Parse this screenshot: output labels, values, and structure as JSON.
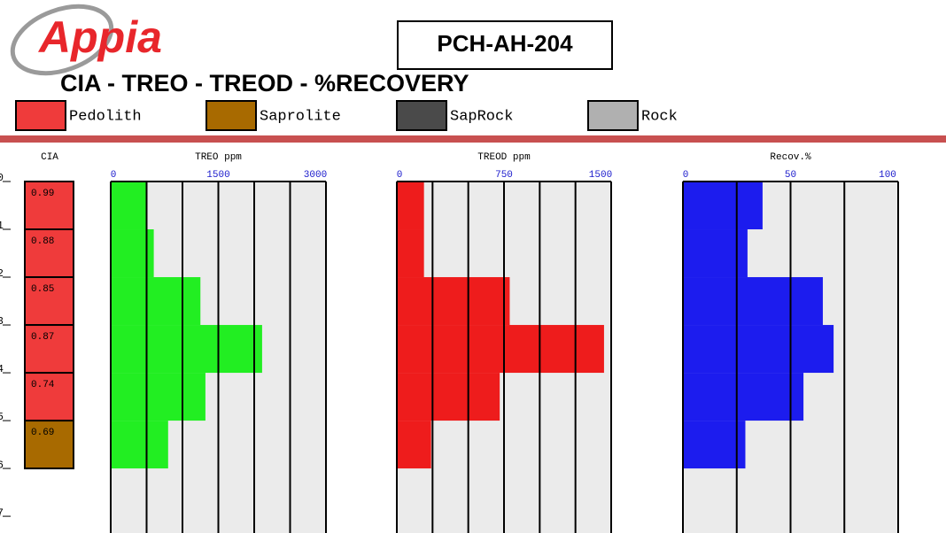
{
  "header": {
    "logo": "Appia",
    "hole_id": "PCH-AH-204",
    "title": "CIA - TREO - TREOD - %RECOVERY"
  },
  "legend": {
    "items": [
      {
        "name": "Pedolith",
        "color": "#ef3b3b"
      },
      {
        "name": "Saprolite",
        "color": "#a86a00"
      },
      {
        "name": "SapRock",
        "color": "#4a4a4a"
      },
      {
        "name": "Rock",
        "color": "#b0b0b0"
      }
    ]
  },
  "depth_axis": {
    "ylim": [
      0,
      7.35
    ],
    "yticks": [
      0,
      1,
      2,
      3,
      4,
      5,
      6,
      7
    ]
  },
  "intervals": {
    "depth_from": [
      0,
      1,
      2,
      3,
      4,
      5
    ],
    "depth_to": [
      1,
      2,
      3,
      4,
      5,
      6
    ]
  },
  "cia": {
    "title": "CIA",
    "values": [
      0.99,
      0.88,
      0.85,
      0.87,
      0.74,
      0.69
    ],
    "lithology": [
      "Pedolith",
      "Pedolith",
      "Pedolith",
      "Pedolith",
      "Pedolith",
      "Saprolite"
    ]
  },
  "chart_data": [
    {
      "type": "bar",
      "orientation": "horizontal",
      "title": "TREO ppm",
      "color": "#22ee22",
      "xlim": [
        0,
        3000
      ],
      "xticks": [
        0,
        1500,
        3000
      ],
      "minor_xticks": [
        500,
        1000,
        2000,
        2500
      ],
      "values": [
        500,
        600,
        1250,
        2110,
        1320,
        800
      ]
    },
    {
      "type": "bar",
      "orientation": "horizontal",
      "title": "TREOD ppm",
      "color": "#ee1c1c",
      "xlim": [
        0,
        1500
      ],
      "xticks": [
        0,
        750,
        1500
      ],
      "minor_xticks": [
        250,
        500,
        1000,
        1250
      ],
      "values": [
        190,
        190,
        790,
        1450,
        720,
        240
      ]
    },
    {
      "type": "bar",
      "orientation": "horizontal",
      "title": "Recov.%",
      "color": "#1c1cee",
      "xlim": [
        0,
        100
      ],
      "xticks": [
        0,
        50,
        100
      ],
      "minor_xticks": [
        25,
        75
      ],
      "values": [
        37,
        30,
        65,
        70,
        56,
        29
      ]
    }
  ]
}
